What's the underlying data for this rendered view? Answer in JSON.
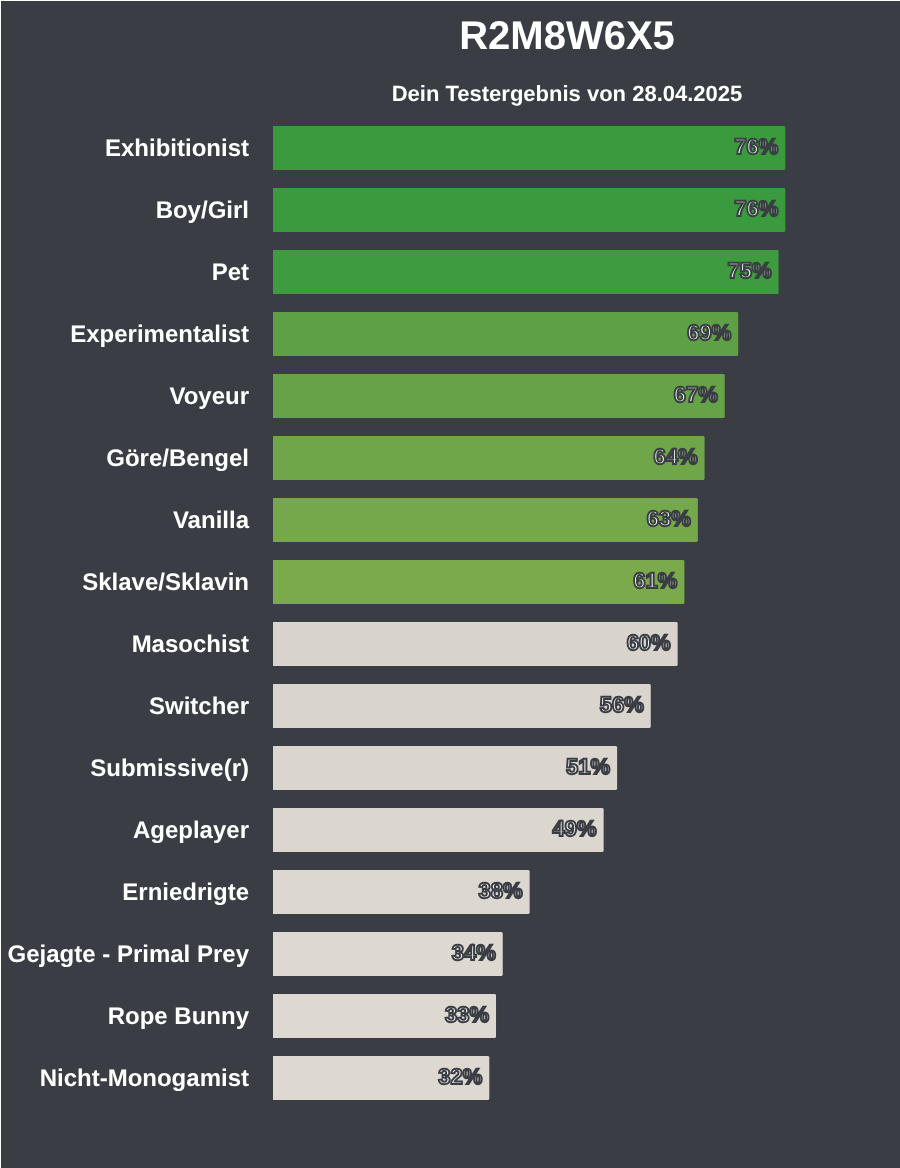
{
  "chart_data": {
    "type": "bar",
    "orientation": "horizontal",
    "data_labels": true,
    "title": "R2M8W6X5",
    "subtitle": "Dein Testergebnis von 28.04.2025",
    "categories": [
      "Exhibitionist",
      "Boy/Girl",
      "Pet",
      "Experimentalist",
      "Voyeur",
      "Göre/Bengel",
      "Vanilla",
      "Sklave/Sklavin",
      "Masochist",
      "Switcher",
      "Submissive(r)",
      "Ageplayer",
      "Erniedrigte",
      "Gejagte - Primal Prey",
      "Rope Bunny",
      "Nicht-Monogamist"
    ],
    "values": [
      76,
      76,
      75,
      69,
      67,
      64,
      63,
      61,
      60,
      56,
      51,
      49,
      38,
      34,
      33,
      32
    ],
    "value_labels": [
      "76%",
      "76%",
      "75%",
      "69%",
      "67%",
      "64%",
      "63%",
      "61%",
      "60%",
      "56%",
      "51%",
      "49%",
      "38%",
      "34%",
      "33%",
      "32%"
    ],
    "colors": [
      "#3a9a3e",
      "#3a9a3e",
      "#3f9b3f",
      "#5ea045",
      "#66a247",
      "#6ea649",
      "#74a84a",
      "#7aaa4b",
      "#d8d4cc",
      "#d9d5cd",
      "#dad6ce",
      "#dbd7cf",
      "#dcd8d0",
      "#ddd9d1",
      "#ddd9d1",
      "#ddd9d1"
    ],
    "tick_labels": "y",
    "grid": false
  }
}
